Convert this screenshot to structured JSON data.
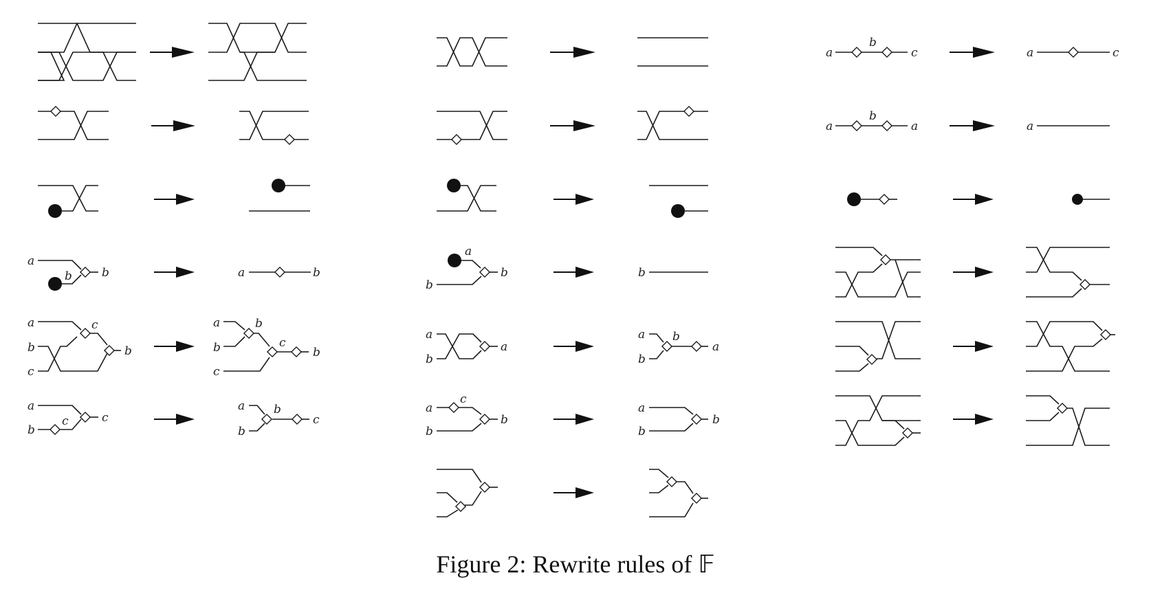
{
  "figure": {
    "caption_prefix": "Figure 2:",
    "caption_text": "Rewrite rules of",
    "caption_symbol": "𝔽"
  },
  "labels": {
    "a": "a",
    "b": "b",
    "c": "c"
  },
  "columns": [
    {
      "id": "left",
      "rule_count": 6
    },
    {
      "id": "middle",
      "rule_count": 7
    },
    {
      "id": "right",
      "rule_count": 6
    }
  ]
}
